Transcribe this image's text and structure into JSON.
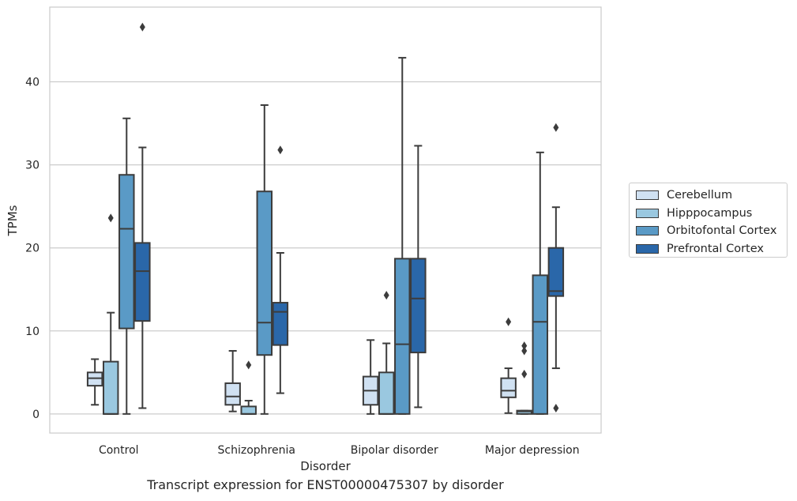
{
  "chart_data": {
    "type": "box",
    "title": "",
    "caption": "Transcript expression for ENST00000475307 by disorder",
    "xlabel": "Disorder",
    "ylabel": "TPMs",
    "ylim": [
      -2.3,
      49
    ],
    "yticks": [
      0,
      10,
      20,
      30,
      40
    ],
    "grid": "horizontal",
    "legend_position": "right",
    "categories": [
      "Control",
      "Schizophrenia",
      "Bipolar disorder",
      "Major depression"
    ],
    "series": [
      {
        "name": "Cerebellum",
        "color": "#d0e1f2",
        "boxes": [
          {
            "whisker_low": 1.1,
            "q1": 3.4,
            "median": 4.3,
            "q3": 5.0,
            "whisker_high": 6.6,
            "outliers": []
          },
          {
            "whisker_low": 0.3,
            "q1": 1.1,
            "median": 2.1,
            "q3": 3.7,
            "whisker_high": 7.6,
            "outliers": []
          },
          {
            "whisker_low": 0.0,
            "q1": 1.1,
            "median": 2.8,
            "q3": 4.5,
            "whisker_high": 8.9,
            "outliers": []
          },
          {
            "whisker_low": 0.1,
            "q1": 2.0,
            "median": 2.8,
            "q3": 4.3,
            "whisker_high": 5.5,
            "outliers": [
              11.1
            ]
          }
        ]
      },
      {
        "name": "Hipppocampus",
        "color": "#9ac8e0",
        "boxes": [
          {
            "whisker_low": 0.0,
            "q1": 0.0,
            "median": 0.0,
            "q3": 6.3,
            "whisker_high": 12.2,
            "outliers": [
              23.6
            ]
          },
          {
            "whisker_low": 0.0,
            "q1": 0.0,
            "median": 0.0,
            "q3": 0.9,
            "whisker_high": 1.6,
            "outliers": [
              5.9
            ]
          },
          {
            "whisker_low": 0.0,
            "q1": 0.0,
            "median": 0.0,
            "q3": 5.0,
            "whisker_high": 8.5,
            "outliers": [
              14.3
            ]
          },
          {
            "whisker_low": 0.0,
            "q1": 0.0,
            "median": 0.3,
            "q3": 0.4,
            "whisker_high": 0.4,
            "outliers": [
              4.8,
              7.6,
              8.2
            ]
          }
        ]
      },
      {
        "name": "Orbitofontal Cortex",
        "color": "#5a9ac6",
        "boxes": [
          {
            "whisker_low": 0.0,
            "q1": 10.3,
            "median": 22.3,
            "q3": 28.8,
            "whisker_high": 35.6,
            "outliers": []
          },
          {
            "whisker_low": 0.0,
            "q1": 7.1,
            "median": 11.0,
            "q3": 26.8,
            "whisker_high": 37.2,
            "outliers": []
          },
          {
            "whisker_low": 0.0,
            "q1": 0.0,
            "median": 8.4,
            "q3": 18.7,
            "whisker_high": 42.9,
            "outliers": []
          },
          {
            "whisker_low": 0.0,
            "q1": 0.0,
            "median": 11.1,
            "q3": 16.7,
            "whisker_high": 31.5,
            "outliers": []
          }
        ]
      },
      {
        "name": "Prefrontal Cortex",
        "color": "#2a67a9",
        "boxes": [
          {
            "whisker_low": 0.7,
            "q1": 11.2,
            "median": 17.2,
            "q3": 20.6,
            "whisker_high": 32.1,
            "outliers": [
              46.6
            ]
          },
          {
            "whisker_low": 2.5,
            "q1": 8.3,
            "median": 12.3,
            "q3": 13.4,
            "whisker_high": 19.4,
            "outliers": [
              31.8
            ]
          },
          {
            "whisker_low": 0.8,
            "q1": 7.4,
            "median": 13.9,
            "q3": 18.7,
            "whisker_high": 32.3,
            "outliers": []
          },
          {
            "whisker_low": 5.5,
            "q1": 14.2,
            "median": 14.8,
            "q3": 20.0,
            "whisker_high": 24.9,
            "outliers": [
              0.7,
              34.5
            ]
          }
        ]
      }
    ]
  }
}
